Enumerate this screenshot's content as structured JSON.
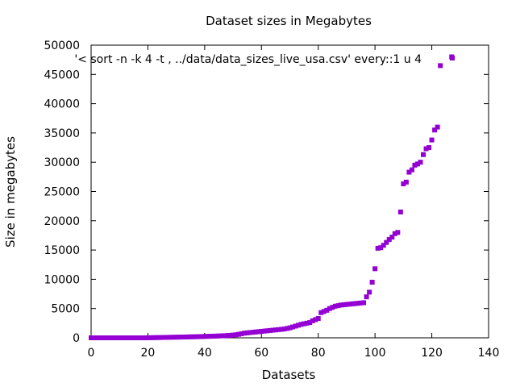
{
  "chart_data": {
    "type": "scatter",
    "title": "Dataset sizes in Megabytes",
    "xlabel": "Datasets",
    "ylabel": "Size in megabytes",
    "xlim": [
      0,
      140
    ],
    "ylim": [
      0,
      50000
    ],
    "x_ticks": [
      0,
      20,
      40,
      60,
      80,
      100,
      120,
      140
    ],
    "y_ticks": [
      0,
      5000,
      10000,
      15000,
      20000,
      25000,
      30000,
      35000,
      40000,
      45000,
      50000
    ],
    "grid": false,
    "legend_position": "top-right",
    "series": [
      {
        "name": "'< sort -n -k 4 -t , ../data/data_sizes_live_usa.csv' every::1 u 4",
        "color": "#9400d3",
        "marker": "square",
        "x": [
          0,
          1,
          2,
          3,
          4,
          5,
          6,
          7,
          8,
          9,
          10,
          11,
          12,
          13,
          14,
          15,
          16,
          17,
          18,
          19,
          20,
          21,
          22,
          23,
          24,
          25,
          26,
          27,
          28,
          29,
          30,
          31,
          32,
          33,
          34,
          35,
          36,
          37,
          38,
          39,
          40,
          41,
          42,
          43,
          44,
          45,
          46,
          47,
          48,
          49,
          50,
          51,
          52,
          53,
          54,
          55,
          56,
          57,
          58,
          59,
          60,
          61,
          62,
          63,
          64,
          65,
          66,
          67,
          68,
          69,
          70,
          71,
          72,
          73,
          74,
          75,
          76,
          77,
          78,
          79,
          80,
          81,
          82,
          83,
          84,
          85,
          86,
          87,
          88,
          89,
          90,
          91,
          92,
          93,
          94,
          95,
          96,
          97,
          98,
          99,
          100,
          101,
          102,
          103,
          104,
          105,
          106,
          107,
          108,
          109,
          110,
          111,
          112,
          113,
          114,
          115,
          116,
          117,
          118,
          119,
          120,
          121,
          122,
          123,
          127
        ],
        "values": [
          0,
          0,
          0,
          0,
          0,
          0,
          0,
          0,
          0,
          0,
          0,
          0,
          0,
          0,
          0,
          0,
          0,
          0,
          0,
          0,
          10,
          20,
          30,
          40,
          50,
          60,
          70,
          80,
          90,
          100,
          110,
          120,
          130,
          140,
          150,
          170,
          180,
          190,
          200,
          210,
          230,
          250,
          270,
          280,
          300,
          320,
          340,
          360,
          390,
          420,
          460,
          520,
          600,
          700,
          800,
          850,
          900,
          950,
          1000,
          1050,
          1100,
          1150,
          1200,
          1250,
          1300,
          1350,
          1400,
          1450,
          1500,
          1600,
          1700,
          1850,
          2000,
          2150,
          2300,
          2400,
          2500,
          2600,
          2900,
          3100,
          3300,
          4300,
          4500,
          4700,
          5000,
          5200,
          5400,
          5500,
          5600,
          5650,
          5700,
          5750,
          5800,
          5850,
          5900,
          5950,
          6000,
          7000,
          7800,
          9500,
          11800,
          15300,
          15400,
          15800,
          16300,
          16800,
          17200,
          17800,
          18000,
          21500,
          26300,
          26600,
          28300,
          28700,
          29500,
          29700,
          30000,
          31300,
          32300,
          32500,
          33800,
          35500,
          36000,
          46500,
          48000
        ]
      }
    ]
  }
}
